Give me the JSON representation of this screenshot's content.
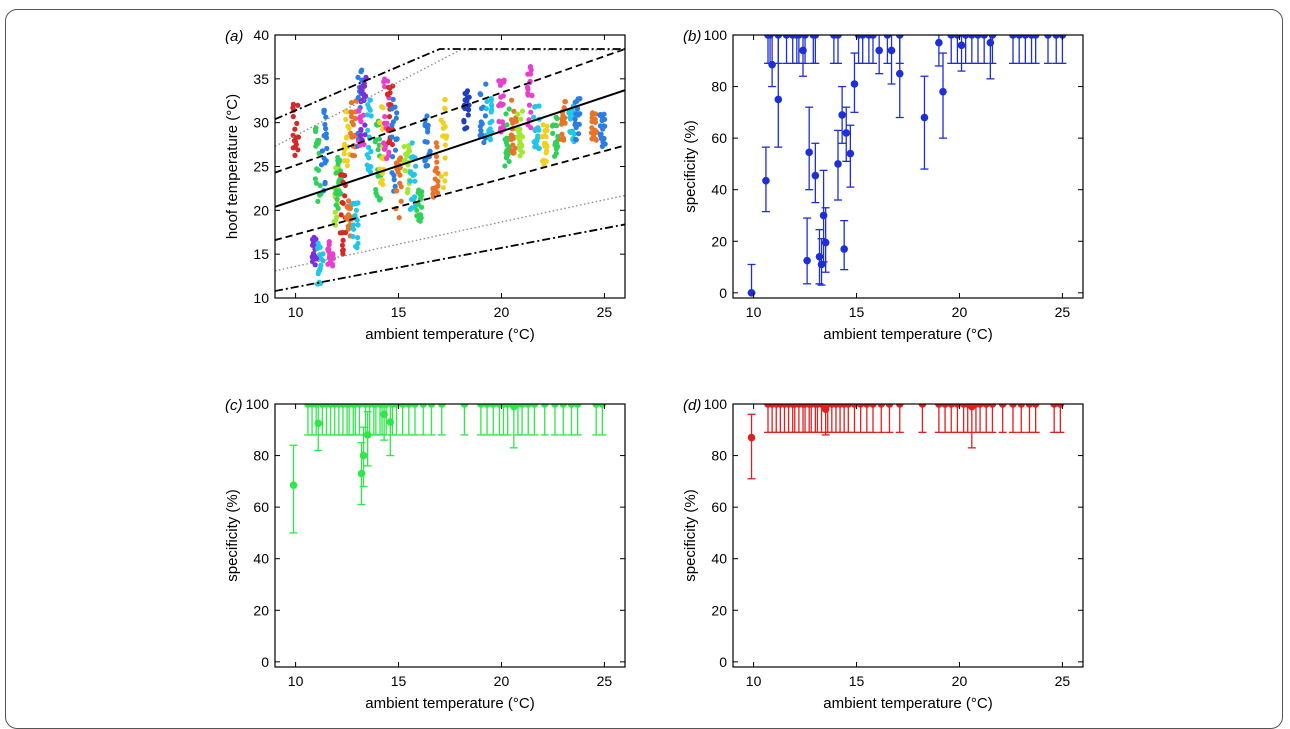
{
  "chart_data": [
    {
      "panel_label": "(a)",
      "type": "scatter",
      "xlabel": "ambient temperature (°C)",
      "ylabel": "hoof temperature (°C)",
      "xlim": [
        9,
        26
      ],
      "ylim": [
        10,
        40
      ],
      "xticks": [
        10,
        15,
        20,
        25
      ],
      "yticks": [
        10,
        15,
        20,
        25,
        30,
        35,
        40
      ],
      "grid": false,
      "legend": "none",
      "regression_line": {
        "x": [
          9,
          26
        ],
        "y": [
          20.4,
          33.7
        ],
        "style": "solid",
        "color": "#000000"
      },
      "bands": [
        {
          "style": "dashed",
          "color": "#000000",
          "x": [
            9,
            26
          ],
          "y": [
            24.3,
            38.4
          ]
        },
        {
          "style": "dashed",
          "color": "#000000",
          "x": [
            9,
            26
          ],
          "y": [
            16.6,
            27.4
          ]
        },
        {
          "style": "dotted",
          "color": "#888888",
          "x": [
            9,
            18,
            26
          ],
          "y": [
            27.3,
            38.3,
            38.3
          ]
        },
        {
          "style": "dotted",
          "color": "#888888",
          "x": [
            9,
            26
          ],
          "y": [
            13.1,
            21.7
          ]
        },
        {
          "style": "dashdot",
          "color": "#000000",
          "x": [
            9,
            17,
            26
          ],
          "y": [
            30.4,
            38.4,
            38.4
          ]
        },
        {
          "style": "dashdot",
          "color": "#000000",
          "x": [
            9,
            26
          ],
          "y": [
            10.8,
            18.4
          ]
        }
      ],
      "clusters": [
        {
          "x": 10.0,
          "ymin": 26,
          "ymax": 32.5,
          "color": "#d62828"
        },
        {
          "x": 10.9,
          "ymin": 13.5,
          "ymax": 17,
          "color": "#7b2fd6"
        },
        {
          "x": 11.1,
          "ymin": 21,
          "ymax": 29.5,
          "color": "#32d05a"
        },
        {
          "x": 11.2,
          "ymin": 11.5,
          "ymax": 16.5,
          "color": "#22c6e8"
        },
        {
          "x": 11.4,
          "ymin": 22,
          "ymax": 32,
          "color": "#2a7de1"
        },
        {
          "x": 11.7,
          "ymin": 13.5,
          "ymax": 16.5,
          "color": "#e83fcf"
        },
        {
          "x": 12.0,
          "ymin": 17.5,
          "ymax": 25,
          "color": "#a2e832"
        },
        {
          "x": 12.1,
          "ymin": 20,
          "ymax": 26.5,
          "color": "#32d05a"
        },
        {
          "x": 12.3,
          "ymin": 15,
          "ymax": 24.5,
          "color": "#d62828"
        },
        {
          "x": 12.5,
          "ymin": 25,
          "ymax": 32,
          "color": "#f0d020"
        },
        {
          "x": 12.6,
          "ymin": 17,
          "ymax": 22,
          "color": "#e8742a"
        },
        {
          "x": 12.8,
          "ymin": 26,
          "ymax": 33,
          "color": "#e8742a"
        },
        {
          "x": 12.9,
          "ymin": 15.5,
          "ymax": 21,
          "color": "#22c6e8"
        },
        {
          "x": 13.1,
          "ymin": 26,
          "ymax": 36.5,
          "color": "#2a7de1"
        },
        {
          "x": 13.2,
          "ymin": 27,
          "ymax": 35,
          "color": "#e83fcf"
        },
        {
          "x": 13.3,
          "ymin": 28,
          "ymax": 35.5,
          "color": "#7b2fd6"
        },
        {
          "x": 13.6,
          "ymin": 24,
          "ymax": 33,
          "color": "#22c6e8"
        },
        {
          "x": 14.0,
          "ymin": 21,
          "ymax": 31,
          "color": "#32d05a"
        },
        {
          "x": 14.2,
          "ymin": 22,
          "ymax": 33,
          "color": "#f0d020"
        },
        {
          "x": 14.4,
          "ymin": 25,
          "ymax": 35,
          "color": "#e83fcf"
        },
        {
          "x": 14.6,
          "ymin": 27,
          "ymax": 34.5,
          "color": "#d62828"
        },
        {
          "x": 14.8,
          "ymin": 22,
          "ymax": 33,
          "color": "#2a7de1"
        },
        {
          "x": 15.0,
          "ymin": 19,
          "ymax": 26,
          "color": "#e8742a"
        },
        {
          "x": 15.4,
          "ymin": 21,
          "ymax": 27.5,
          "color": "#a2e832"
        },
        {
          "x": 15.7,
          "ymin": 20,
          "ymax": 28,
          "color": "#22c6e8"
        },
        {
          "x": 16.0,
          "ymin": 18.5,
          "ymax": 23,
          "color": "#32d05a"
        },
        {
          "x": 16.4,
          "ymin": 25,
          "ymax": 31,
          "color": "#2a7de1"
        },
        {
          "x": 16.8,
          "ymin": 21.5,
          "ymax": 28,
          "color": "#e8742a"
        },
        {
          "x": 17.2,
          "ymin": 22,
          "ymax": 33,
          "color": "#f0d020"
        },
        {
          "x": 18.3,
          "ymin": 29,
          "ymax": 34,
          "color": "#1f3fbf"
        },
        {
          "x": 19.1,
          "ymin": 27.5,
          "ymax": 34.5,
          "color": "#2a7de1"
        },
        {
          "x": 19.4,
          "ymin": 28,
          "ymax": 33,
          "color": "#22c6e8"
        },
        {
          "x": 20.0,
          "ymin": 27,
          "ymax": 35,
          "color": "#e83fcf"
        },
        {
          "x": 20.3,
          "ymin": 25,
          "ymax": 32,
          "color": "#32d05a"
        },
        {
          "x": 20.6,
          "ymin": 26,
          "ymax": 33,
          "color": "#e8742a"
        },
        {
          "x": 20.9,
          "ymin": 26,
          "ymax": 32,
          "color": "#a2e832"
        },
        {
          "x": 21.4,
          "ymin": 29,
          "ymax": 36.5,
          "color": "#e83fcf"
        },
        {
          "x": 21.7,
          "ymin": 27,
          "ymax": 32,
          "color": "#22c6e8"
        },
        {
          "x": 22.1,
          "ymin": 25,
          "ymax": 30,
          "color": "#f0d020"
        },
        {
          "x": 22.6,
          "ymin": 26,
          "ymax": 31,
          "color": "#32d05a"
        },
        {
          "x": 23.0,
          "ymin": 28,
          "ymax": 32.5,
          "color": "#e8742a"
        },
        {
          "x": 23.4,
          "ymin": 27,
          "ymax": 32,
          "color": "#22c6e8"
        },
        {
          "x": 23.7,
          "ymin": 28,
          "ymax": 33,
          "color": "#2a7de1"
        },
        {
          "x": 24.5,
          "ymin": 28,
          "ymax": 31.5,
          "color": "#e8742a"
        },
        {
          "x": 24.9,
          "ymin": 27,
          "ymax": 31,
          "color": "#2a7de1"
        }
      ]
    },
    {
      "panel_label": "(b)",
      "type": "scatter",
      "xlabel": "ambient temperature (°C)",
      "ylabel": "specificity (%)",
      "xlim": [
        9,
        26
      ],
      "ylim": [
        -2,
        100
      ],
      "xticks": [
        10,
        15,
        20,
        25
      ],
      "yticks": [
        0,
        20,
        40,
        60,
        80,
        100
      ],
      "color": "#1f2fd6",
      "points": [
        {
          "x": 9.9,
          "y": 0,
          "lo": 0,
          "hi": 11
        },
        {
          "x": 10.6,
          "y": 43.5,
          "lo": 31.5,
          "hi": 56.5
        },
        {
          "x": 10.7,
          "y": 100,
          "lo": 89,
          "hi": 100
        },
        {
          "x": 10.9,
          "y": 88.5,
          "lo": 80,
          "hi": 100
        },
        {
          "x": 11.2,
          "y": 75,
          "lo": 56.5,
          "hi": 100
        },
        {
          "x": 11.6,
          "y": 100,
          "lo": 89,
          "hi": 100
        },
        {
          "x": 12.1,
          "y": 100,
          "lo": 89,
          "hi": 100
        },
        {
          "x": 12.4,
          "y": 94,
          "lo": 84,
          "hi": 100
        },
        {
          "x": 12.6,
          "y": 12.5,
          "lo": 3.5,
          "hi": 29
        },
        {
          "x": 12.7,
          "y": 54.5,
          "lo": 40,
          "hi": 72
        },
        {
          "x": 13.0,
          "y": 45.5,
          "lo": 35,
          "hi": 58
        },
        {
          "x": 13.2,
          "y": 14,
          "lo": 3.5,
          "hi": 24.5
        },
        {
          "x": 13.3,
          "y": 11,
          "lo": 3,
          "hi": 21
        },
        {
          "x": 13.4,
          "y": 30,
          "lo": 12,
          "hi": 47.5
        },
        {
          "x": 13.5,
          "y": 19.5,
          "lo": 8,
          "hi": 33
        },
        {
          "x": 14.1,
          "y": 50,
          "lo": 36,
          "hi": 63
        },
        {
          "x": 14.3,
          "y": 69,
          "lo": 58,
          "hi": 80
        },
        {
          "x": 14.4,
          "y": 17,
          "lo": 9,
          "hi": 28
        },
        {
          "x": 14.5,
          "y": 62,
          "lo": 51,
          "hi": 72
        },
        {
          "x": 14.7,
          "y": 54,
          "lo": 41,
          "hi": 65
        },
        {
          "x": 14.9,
          "y": 81,
          "lo": 70,
          "hi": 93
        },
        {
          "x": 15.1,
          "y": 100,
          "lo": 89,
          "hi": 100
        },
        {
          "x": 15.8,
          "y": 100,
          "lo": 89,
          "hi": 100
        },
        {
          "x": 16.1,
          "y": 94,
          "lo": 85,
          "hi": 100
        },
        {
          "x": 16.7,
          "y": 94,
          "lo": 81,
          "hi": 100
        },
        {
          "x": 17.1,
          "y": 85,
          "lo": 68,
          "hi": 100
        },
        {
          "x": 18.3,
          "y": 68,
          "lo": 48,
          "hi": 84
        },
        {
          "x": 19.0,
          "y": 97,
          "lo": 88,
          "hi": 100
        },
        {
          "x": 19.2,
          "y": 78,
          "lo": 60,
          "hi": 93
        },
        {
          "x": 19.6,
          "y": 100,
          "lo": 89,
          "hi": 100
        },
        {
          "x": 20.1,
          "y": 96,
          "lo": 86,
          "hi": 100
        },
        {
          "x": 20.6,
          "y": 100,
          "lo": 89,
          "hi": 100
        },
        {
          "x": 21.5,
          "y": 97,
          "lo": 83,
          "hi": 100
        },
        {
          "x": 22.6,
          "y": 100,
          "lo": 89,
          "hi": 100
        },
        {
          "x": 23.5,
          "y": 100,
          "lo": 89,
          "hi": 100
        },
        {
          "x": 24.7,
          "y": 100,
          "lo": 89,
          "hi": 100
        }
      ],
      "full_x": [
        10.8,
        11.2,
        11.9,
        12.2,
        12.5,
        12.9,
        13.0,
        13.9,
        14.1,
        15.3,
        15.6,
        16.5,
        17.1,
        19.9,
        20.3,
        20.9,
        21.2,
        21.6,
        22.9,
        23.2,
        23.7,
        24.3,
        25.0
      ],
      "full_lo": 89
    },
    {
      "panel_label": "(c)",
      "type": "scatter",
      "xlabel": "ambient temperature (°C)",
      "ylabel": "specificity (%)",
      "xlim": [
        9,
        26
      ],
      "ylim": [
        -2,
        100
      ],
      "xticks": [
        10,
        15,
        20,
        25
      ],
      "yticks": [
        0,
        20,
        40,
        60,
        80,
        100
      ],
      "color": "#2ee84a",
      "points": [
        {
          "x": 9.9,
          "y": 68.5,
          "lo": 50,
          "hi": 84
        },
        {
          "x": 11.1,
          "y": 92.5,
          "lo": 82,
          "hi": 100
        },
        {
          "x": 13.2,
          "y": 73,
          "lo": 61,
          "hi": 85
        },
        {
          "x": 13.3,
          "y": 80,
          "lo": 68,
          "hi": 91
        },
        {
          "x": 13.5,
          "y": 88,
          "lo": 76,
          "hi": 97
        },
        {
          "x": 14.3,
          "y": 96,
          "lo": 86,
          "hi": 100
        },
        {
          "x": 14.6,
          "y": 93,
          "lo": 80,
          "hi": 100
        },
        {
          "x": 20.6,
          "y": 99,
          "lo": 83,
          "hi": 100
        }
      ],
      "full_x": [
        10.6,
        10.8,
        11.0,
        11.3,
        11.5,
        11.7,
        11.9,
        12.1,
        12.3,
        12.5,
        12.6,
        12.8,
        12.9,
        13.1,
        13.4,
        13.6,
        13.8,
        13.9,
        14.1,
        14.2,
        14.4,
        14.7,
        14.9,
        15.2,
        15.5,
        15.8,
        16.2,
        16.6,
        17.1,
        18.2,
        19.0,
        19.3,
        19.6,
        19.9,
        20.1,
        20.3,
        20.8,
        21.0,
        21.3,
        21.6,
        22.1,
        22.6,
        23.0,
        23.4,
        23.7,
        24.6,
        24.9
      ],
      "full_lo": 88
    },
    {
      "panel_label": "(d)",
      "type": "scatter",
      "xlabel": "ambient temperature (°C)",
      "ylabel": "specificity (%)",
      "xlim": [
        9,
        26
      ],
      "ylim": [
        -2,
        100
      ],
      "xticks": [
        10,
        15,
        20,
        25
      ],
      "yticks": [
        0,
        20,
        40,
        60,
        80,
        100
      ],
      "color": "#e02020",
      "points": [
        {
          "x": 9.9,
          "y": 87,
          "lo": 71,
          "hi": 96
        },
        {
          "x": 13.5,
          "y": 98,
          "lo": 88,
          "hi": 100
        },
        {
          "x": 20.6,
          "y": 99,
          "lo": 83,
          "hi": 100
        }
      ],
      "full_x": [
        10.7,
        10.9,
        11.1,
        11.3,
        11.5,
        11.7,
        11.9,
        12.0,
        12.2,
        12.4,
        12.5,
        12.7,
        12.8,
        13.0,
        13.1,
        13.3,
        13.6,
        13.8,
        14.0,
        14.2,
        14.4,
        14.6,
        14.9,
        15.2,
        15.5,
        15.8,
        16.2,
        16.6,
        17.1,
        18.2,
        19.0,
        19.3,
        19.6,
        19.9,
        20.2,
        20.4,
        20.8,
        21.0,
        21.3,
        21.6,
        22.1,
        22.6,
        23.0,
        23.4,
        23.7,
        24.6,
        24.9
      ],
      "full_lo": 89
    }
  ]
}
